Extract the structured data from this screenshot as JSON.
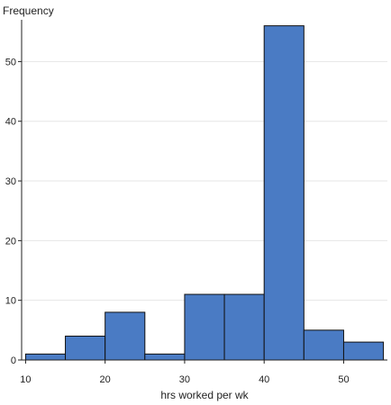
{
  "chart_data": {
    "type": "bar",
    "histogram": true,
    "ylabel": "Frequency",
    "xlabel": "hrs worked per wk",
    "bins": [
      {
        "x0": 10,
        "x1": 15,
        "count": 1
      },
      {
        "x0": 15,
        "x1": 20,
        "count": 4
      },
      {
        "x0": 20,
        "x1": 25,
        "count": 8
      },
      {
        "x0": 25,
        "x1": 30,
        "count": 1
      },
      {
        "x0": 30,
        "x1": 35,
        "count": 11
      },
      {
        "x0": 35,
        "x1": 40,
        "count": 11
      },
      {
        "x0": 40,
        "x1": 45,
        "count": 56
      },
      {
        "x0": 45,
        "x1": 50,
        "count": 5
      },
      {
        "x0": 50,
        "x1": 55,
        "count": 3
      }
    ],
    "xlim": [
      9.5,
      55.5
    ],
    "ylim": [
      0,
      57
    ],
    "xticks": [
      10,
      20,
      30,
      40,
      50
    ],
    "yticks": [
      0,
      10,
      20,
      30,
      40,
      50
    ],
    "grid": "horizontal",
    "bar_color": "#4a7bc4",
    "bar_edge_color": "#111111",
    "grid_color": "#e6e6e6"
  }
}
